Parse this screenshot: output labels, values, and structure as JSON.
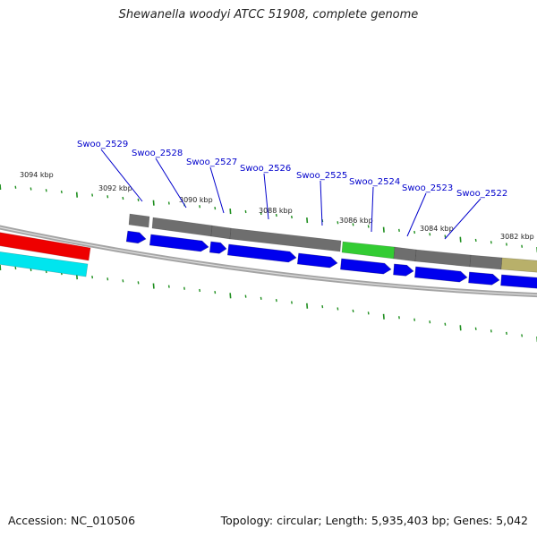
{
  "title": "Shewanella woodyi ATCC 51908, complete genome",
  "footer": {
    "accession": "Accession: NC_010506",
    "summary": "Topology: circular; Length: 5,935,403 bp; Genes: 5,042"
  },
  "colors": {
    "backbone": "#8a8a8a",
    "gene_forward": "#0000ee",
    "feature_gray": "#6e6e6e",
    "feature_green": "#33cc33",
    "feature_olive": "#b8b06a",
    "feature_red": "#ee0000",
    "feature_cyan": "#00e5ee",
    "tick": "#1f8f1f",
    "label": "#0000cc",
    "leader": "#0000cc"
  },
  "scale": {
    "unit": "kbp",
    "labels": [
      "3094 kbp",
      "3092 kbp",
      "3090 kbp",
      "3088 kbp",
      "3086 kbp",
      "3084 kbp",
      "3082 kbp"
    ]
  },
  "genes": [
    {
      "label": "Swoo_2529"
    },
    {
      "label": "Swoo_2528"
    },
    {
      "label": "Swoo_2527"
    },
    {
      "label": "Swoo_2526"
    },
    {
      "label": "Swoo_2525"
    },
    {
      "label": "Swoo_2524"
    },
    {
      "label": "Swoo_2523"
    },
    {
      "label": "Swoo_2522"
    }
  ]
}
